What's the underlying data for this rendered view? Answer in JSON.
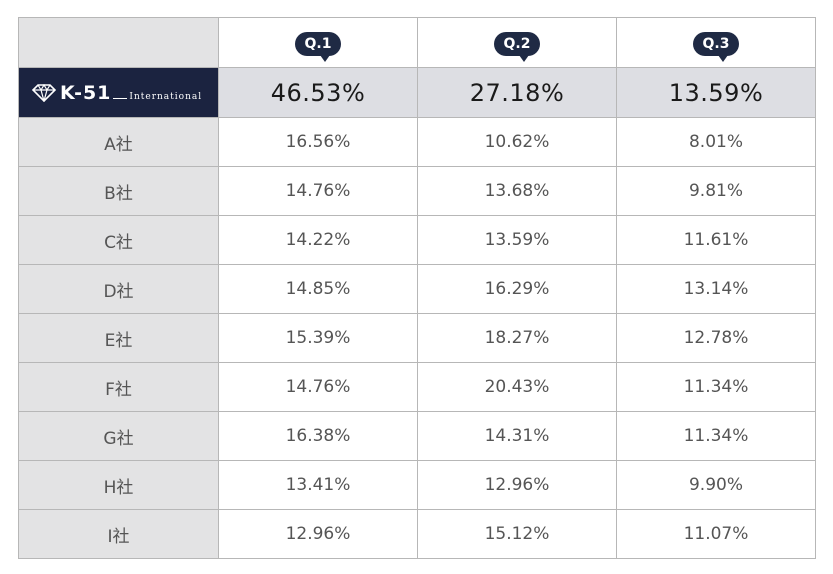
{
  "chart_data": {
    "type": "table",
    "brand": {
      "main": "K-51",
      "sub": "International",
      "icon": "diamond-icon"
    },
    "columns": [
      "Q.1",
      "Q.2",
      "Q.3"
    ],
    "totals": [
      "46.53%",
      "27.18%",
      "13.59%"
    ],
    "rows": [
      {
        "name": "A社",
        "values": [
          "16.56%",
          "10.62%",
          "8.01%"
        ]
      },
      {
        "name": "B社",
        "values": [
          "14.76%",
          "13.68%",
          "9.81%"
        ]
      },
      {
        "name": "C社",
        "values": [
          "14.22%",
          "13.59%",
          "11.61%"
        ]
      },
      {
        "name": "D社",
        "values": [
          "14.85%",
          "16.29%",
          "13.14%"
        ]
      },
      {
        "name": "E社",
        "values": [
          "15.39%",
          "18.27%",
          "12.78%"
        ]
      },
      {
        "name": "F社",
        "values": [
          "14.76%",
          "20.43%",
          "11.34%"
        ]
      },
      {
        "name": "G社",
        "values": [
          "16.38%",
          "14.31%",
          "11.34%"
        ]
      },
      {
        "name": "H社",
        "values": [
          "13.41%",
          "12.96%",
          "9.90%"
        ]
      },
      {
        "name": "I社",
        "values": [
          "12.96%",
          "15.12%",
          "11.07%"
        ]
      }
    ]
  },
  "colors": {
    "header_navy": "#1b2340",
    "bubble_navy": "#1f2a44",
    "label_bg": "#e3e3e4",
    "total_bg": "#dddee3",
    "border": "#b7b7b7"
  }
}
